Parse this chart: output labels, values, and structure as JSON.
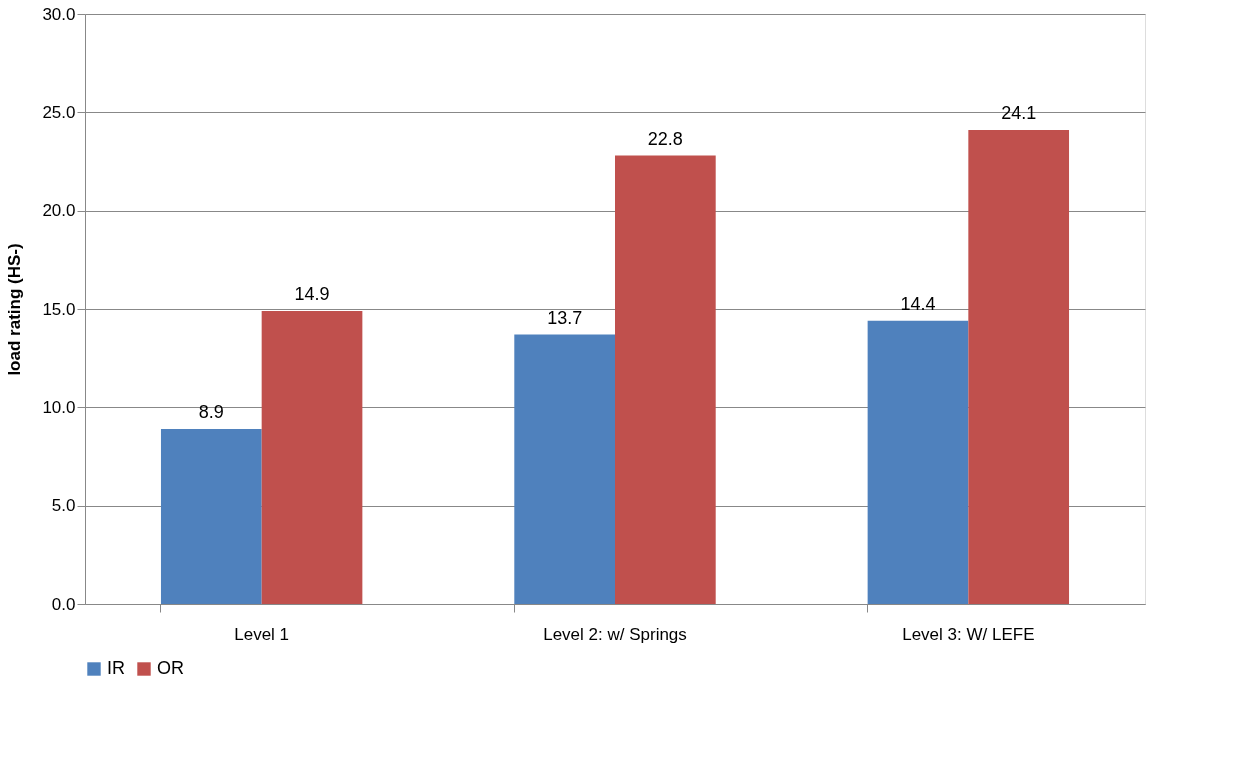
{
  "chart_data": {
    "type": "bar",
    "ylabel": "load rating (HS-)",
    "categories": [
      "Level 1",
      "Level 2: w/ Springs",
      "Level 3: W/ LEFE"
    ],
    "series": [
      {
        "name": "IR",
        "color": "#4f81bd",
        "values": [
          8.9,
          13.7,
          14.4
        ]
      },
      {
        "name": "OR",
        "color": "#c0504d",
        "values": [
          14.9,
          22.8,
          24.1
        ]
      }
    ],
    "ylim": [
      0,
      30
    ],
    "yticks": [
      {
        "value": 0,
        "label": "0.0"
      },
      {
        "value": 5,
        "label": "5.0"
      },
      {
        "value": 10,
        "label": "10.0"
      },
      {
        "value": 15,
        "label": "15.0"
      },
      {
        "value": 20,
        "label": "20.0"
      },
      {
        "value": 25,
        "label": "25.0"
      },
      {
        "value": 30,
        "label": "30.0"
      }
    ],
    "grid": "y",
    "legend": "bottom",
    "data_labels": true
  }
}
